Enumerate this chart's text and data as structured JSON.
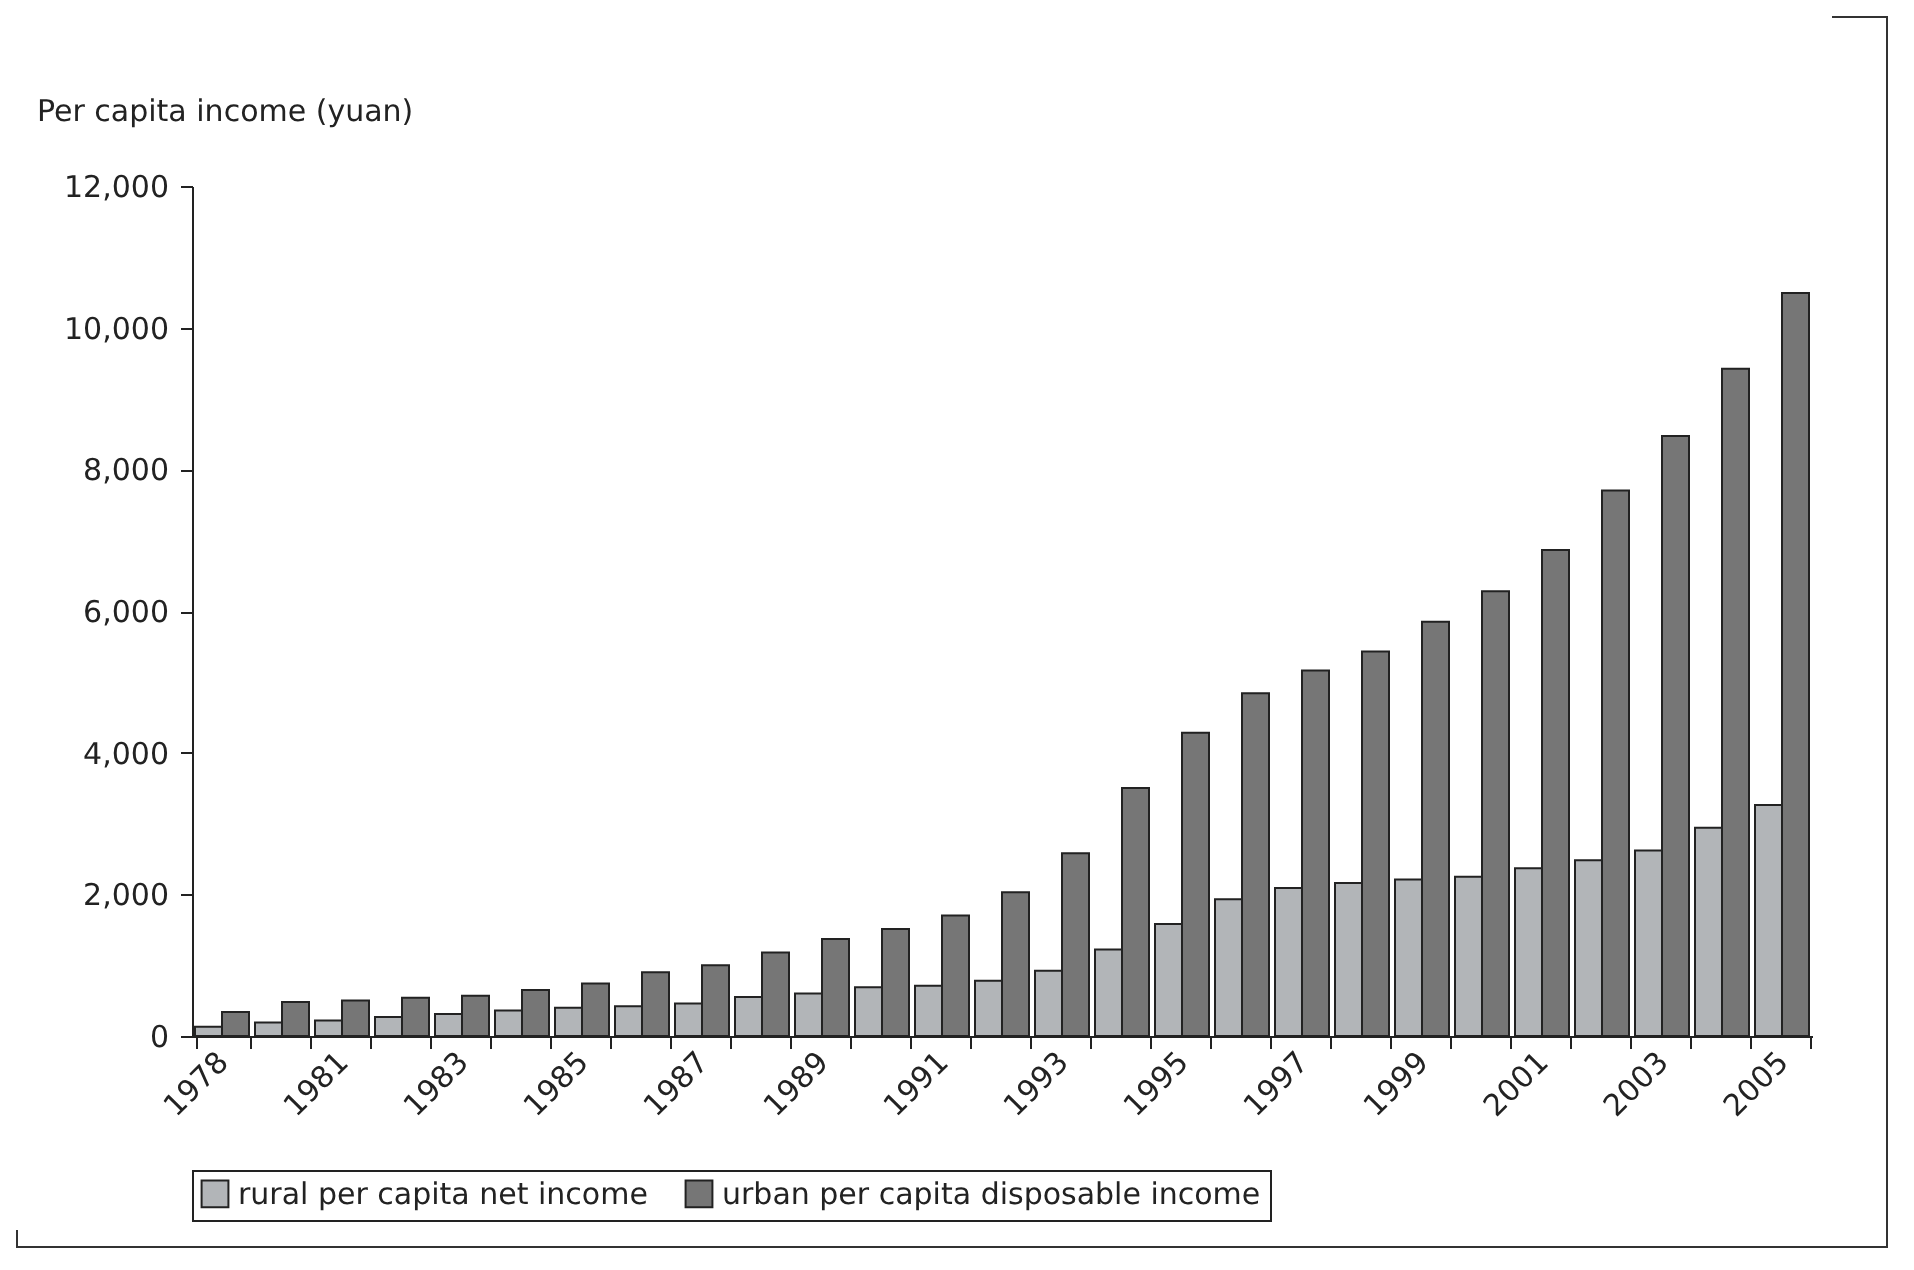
{
  "chart_data": {
    "type": "bar",
    "ylabel": "Per capita income (yuan)",
    "categories": [
      "1978",
      null,
      "1981",
      null,
      "1983",
      null,
      "1985",
      null,
      "1987",
      null,
      "1989",
      null,
      "1991",
      null,
      "1993",
      null,
      "1995",
      null,
      "1997",
      null,
      "1999",
      null,
      "2001",
      null,
      "2003",
      null,
      "2005"
    ],
    "series": [
      {
        "name": "rural per capita net income",
        "color": "#b2b5b8",
        "values": [
          130,
          190,
          220,
          270,
          310,
          360,
          400,
          420,
          460,
          550,
          600,
          690,
          710,
          780,
          920,
          1220,
          1580,
          1930,
          2090,
          2160,
          2210,
          2250,
          2370,
          2480,
          2620,
          2940,
          3260
        ]
      },
      {
        "name": "urban per capita disposable income",
        "color": "#767676",
        "values": [
          340,
          480,
          500,
          540,
          570,
          650,
          740,
          900,
          1000,
          1180,
          1370,
          1510,
          1700,
          2030,
          2580,
          3500,
          4280,
          4840,
          5160,
          5430,
          5850,
          6280,
          6860,
          7700,
          8470,
          9420,
          10490
        ]
      }
    ],
    "ylim": [
      0,
      12000
    ],
    "yticks": [
      0,
      {
        "value": 2000,
        "label": "2,000"
      },
      {
        "value": 4000,
        "label": "4,000"
      },
      {
        "value": 6000,
        "label": "6,000"
      },
      {
        "value": 8000,
        "label": "8,000"
      },
      {
        "value": 10000,
        "label": "10,000"
      },
      {
        "value": 12000,
        "label": "12,000"
      }
    ],
    "legend": "bottom"
  }
}
